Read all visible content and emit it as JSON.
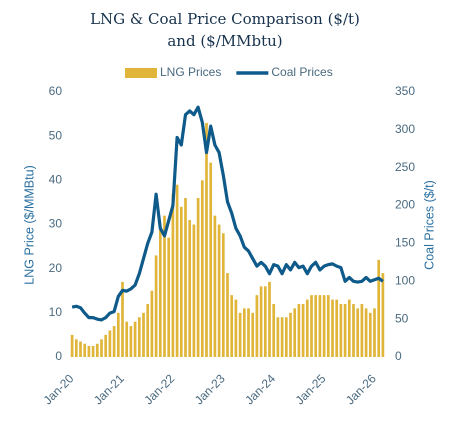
{
  "chart_data": {
    "type": "bar-line",
    "title": "LNG & Coal Price Comparison ($/t) and ($/MMbtu)",
    "y_label": "LNG Price ($/MMBtu)",
    "y2_label": "Coal Prices ($/t)",
    "categories": [
      "Jan-20",
      null,
      null,
      null,
      null,
      null,
      null,
      null,
      null,
      null,
      null,
      null,
      "Jan-21",
      null,
      null,
      null,
      null,
      null,
      null,
      null,
      null,
      null,
      null,
      null,
      "Jan-22",
      null,
      null,
      null,
      null,
      null,
      null,
      null,
      null,
      null,
      null,
      null,
      "Jan-23",
      null,
      null,
      null,
      null,
      null,
      null,
      null,
      null,
      null,
      null,
      null,
      "Jan-24",
      null,
      null,
      null,
      null,
      null,
      null,
      null,
      null,
      null,
      null,
      null,
      "Jan-25",
      null,
      null,
      null,
      null,
      null,
      null,
      null,
      null,
      null,
      null,
      null,
      "Jan-26",
      null,
      null
    ],
    "series": [
      {
        "name": "LNG Prices",
        "type": "bar",
        "axis": "y",
        "color": "#e0b53a",
        "values": [
          5,
          4,
          3.5,
          3,
          2.5,
          2.5,
          3,
          4,
          5,
          6,
          7,
          10,
          17,
          8,
          7,
          8,
          9,
          10,
          12,
          15,
          23,
          29,
          32,
          27,
          37,
          39,
          34,
          36,
          31,
          30,
          36,
          40,
          53,
          44,
          32,
          30,
          28,
          19,
          14,
          13,
          10,
          11,
          11,
          10,
          14,
          16,
          16,
          17,
          12,
          9,
          9,
          9,
          10,
          11,
          12,
          12,
          13,
          14,
          14,
          14,
          14,
          14,
          13,
          13,
          12,
          12,
          13,
          12,
          11,
          12,
          11,
          10,
          11,
          22,
          19
        ]
      },
      {
        "name": "Coal Prices",
        "type": "line",
        "axis": "y2",
        "color": "#0e5a8a",
        "values": [
          66,
          67,
          65,
          58,
          52,
          52,
          50,
          49,
          52,
          58,
          60,
          80,
          88,
          87,
          90,
          95,
          110,
          130,
          150,
          165,
          215,
          170,
          160,
          180,
          200,
          290,
          280,
          320,
          325,
          320,
          330,
          310,
          270,
          305,
          280,
          270,
          240,
          205,
          190,
          170,
          160,
          145,
          140,
          130,
          120,
          125,
          120,
          110,
          122,
          120,
          110,
          122,
          115,
          125,
          118,
          120,
          110,
          120,
          125,
          115,
          120,
          122,
          123,
          120,
          118,
          100,
          105,
          100,
          99,
          100,
          105,
          100,
          102,
          104,
          100
        ]
      }
    ],
    "ylim": [
      0,
      60
    ],
    "yticks": [
      0,
      10,
      20,
      30,
      40,
      50,
      60
    ],
    "y2lim": [
      0,
      350
    ],
    "y2ticks": [
      0,
      50,
      100,
      150,
      200,
      250,
      300,
      350
    ]
  }
}
